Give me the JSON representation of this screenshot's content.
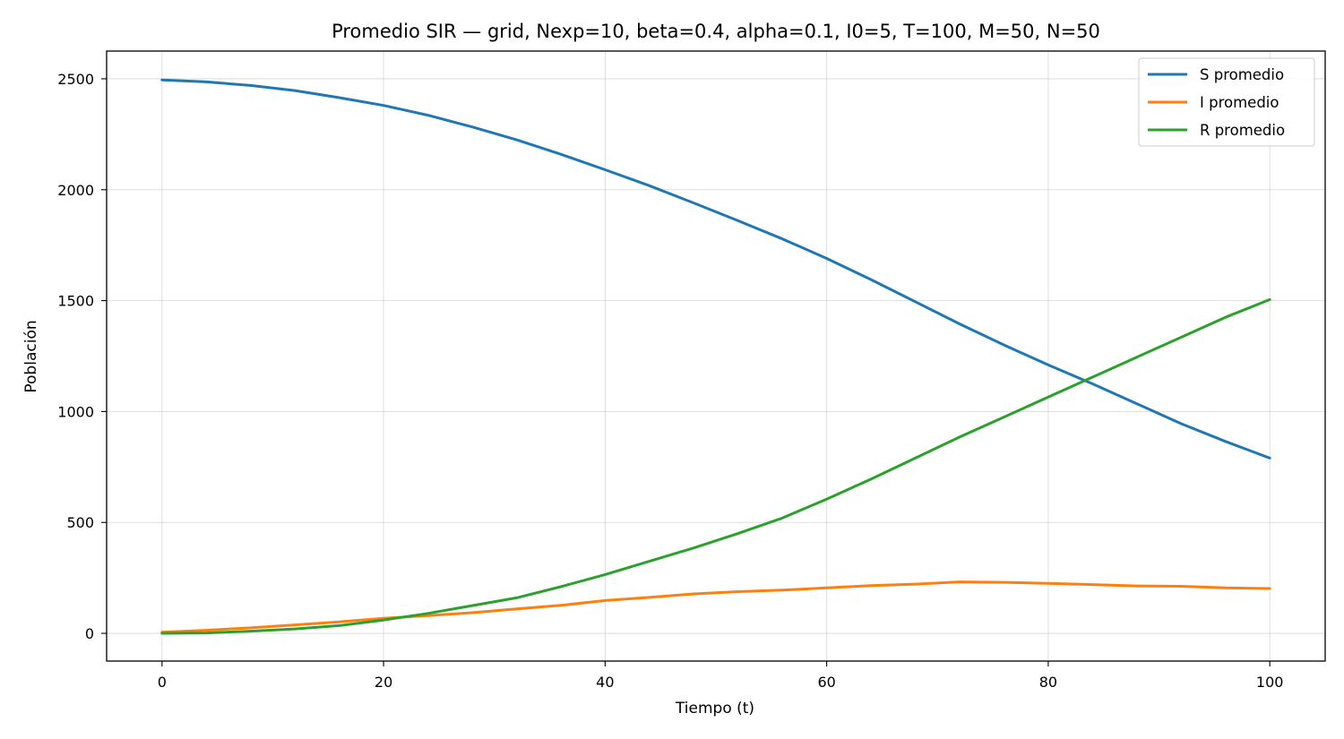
{
  "chart_data": {
    "type": "line",
    "title": "Promedio SIR — grid, Nexp=10, beta=0.4, alpha=0.1, I0=5, T=100, M=50, N=50",
    "xlabel": "Tiempo (t)",
    "ylabel": "Población",
    "xlim": [
      -5,
      105
    ],
    "ylim": [
      -125,
      2625
    ],
    "xticks": [
      0,
      20,
      40,
      60,
      80,
      100
    ],
    "yticks": [
      0,
      500,
      1000,
      1500,
      2000,
      2500
    ],
    "grid": true,
    "legend_position": "top-right",
    "x": [
      0,
      4,
      8,
      12,
      16,
      20,
      24,
      28,
      32,
      36,
      40,
      44,
      48,
      52,
      56,
      60,
      64,
      68,
      72,
      76,
      80,
      84,
      88,
      92,
      96,
      100
    ],
    "series": [
      {
        "name": "S promedio",
        "color": "#1f77b4",
        "values": [
          2495,
          2486,
          2470,
          2447,
          2415,
          2380,
          2336,
          2283,
          2225,
          2160,
          2090,
          2018,
          1940,
          1860,
          1778,
          1690,
          1595,
          1495,
          1395,
          1300,
          1210,
          1125,
          1035,
          945,
          865,
          790
        ]
      },
      {
        "name": "I promedio",
        "color": "#ff7f0e",
        "values": [
          5,
          14,
          25,
          38,
          52,
          68,
          80,
          93,
          110,
          126,
          148,
          162,
          178,
          188,
          195,
          205,
          215,
          222,
          232,
          230,
          225,
          220,
          214,
          212,
          205,
          202
        ]
      },
      {
        "name": "R promedio",
        "color": "#2ca02c",
        "values": [
          0,
          2,
          10,
          20,
          35,
          60,
          90,
          125,
          160,
          210,
          265,
          325,
          385,
          450,
          520,
          605,
          695,
          790,
          885,
          975,
          1065,
          1155,
          1245,
          1335,
          1425,
          1505
        ]
      }
    ]
  }
}
